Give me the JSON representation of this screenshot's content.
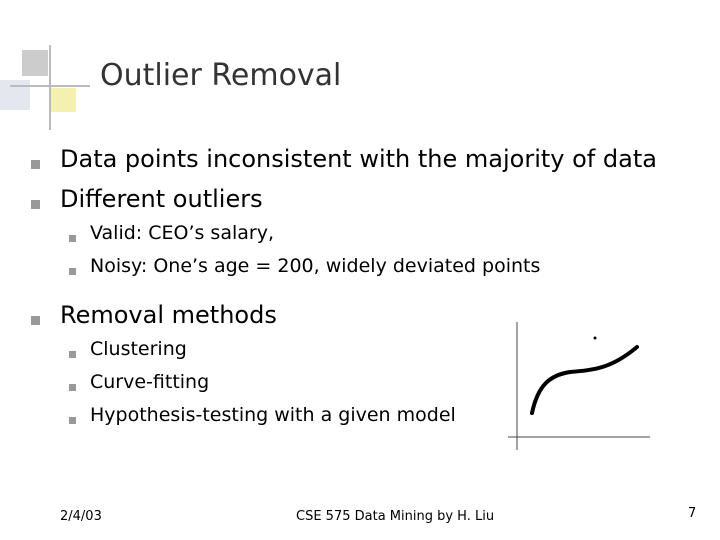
{
  "slide": {
    "title": "Outlier Removal",
    "bullets": [
      {
        "text": "Data points inconsistent with the majority of data"
      },
      {
        "text": "Different outliers",
        "sub": [
          "Valid: CEO’s salary,",
          "Noisy: One’s age = 200, widely deviated points"
        ]
      },
      {
        "text": "Removal methods",
        "sub": [
          "Clustering",
          "Curve-fitting",
          "Hypothesis-testing with a given model"
        ]
      }
    ],
    "footer": {
      "date": "2/4/03",
      "center": "CSE 575 Data Mining by H. Liu",
      "page": "7"
    }
  }
}
